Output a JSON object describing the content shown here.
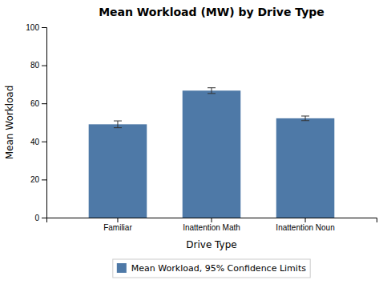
{
  "chart_data": {
    "type": "bar",
    "title": "Mean Workload (MW) by Drive Type",
    "xlabel": "Drive Type",
    "ylabel": "Mean Workload",
    "categories": [
      "Familiar",
      "Inattention Math",
      "Inattention Noun"
    ],
    "series": [
      {
        "name": "Mean Workload, 95% Confidence Limits",
        "values": [
          49.01,
          66.69,
          52.15
        ],
        "errors": [
          1.8,
          1.5,
          1.2
        ]
      }
    ],
    "ylim": [
      0,
      100
    ],
    "yticks": [
      0,
      20,
      40,
      60,
      80,
      100
    ],
    "grid": false,
    "legend": "bottom"
  }
}
